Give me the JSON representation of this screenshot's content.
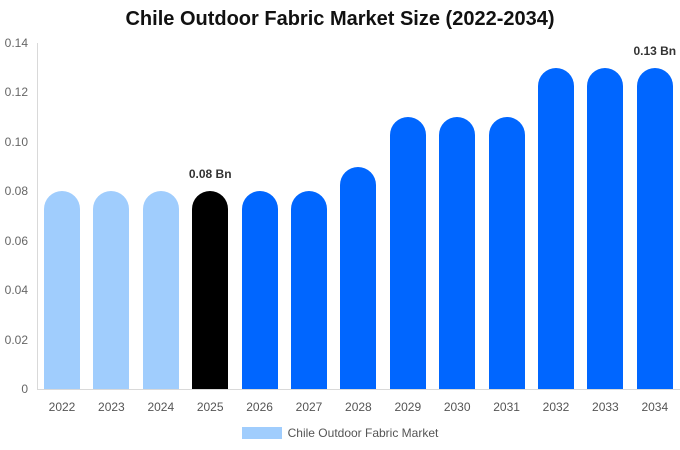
{
  "chart_data": {
    "type": "bar",
    "title": "Chile Outdoor Fabric Market Size (2022-2034)",
    "xlabel": "",
    "ylabel": "",
    "ylim": [
      0,
      0.14
    ],
    "yticks": [
      "0",
      "0.02",
      "0.04",
      "0.06",
      "0.08",
      "0.10",
      "0.12",
      "0.14"
    ],
    "grid": false,
    "legend_position": "bottom",
    "categories": [
      "2022",
      "2023",
      "2024",
      "2025",
      "2026",
      "2027",
      "2028",
      "2029",
      "2030",
      "2031",
      "2032",
      "2033",
      "2034"
    ],
    "series": [
      {
        "name": "Chile Outdoor Fabric Market",
        "values": [
          0.08,
          0.08,
          0.08,
          0.08,
          0.08,
          0.08,
          0.09,
          0.11,
          0.11,
          0.11,
          0.13,
          0.13,
          0.13
        ]
      }
    ],
    "bar_colors": [
      "#a0cdfd",
      "#a0cdfd",
      "#a0cdfd",
      "#000000",
      "#0066ff",
      "#0066ff",
      "#0066ff",
      "#0066ff",
      "#0066ff",
      "#0066ff",
      "#0066ff",
      "#0066ff",
      "#0066ff"
    ],
    "annotations": [
      {
        "category": "2025",
        "text": "0.08 Bn"
      },
      {
        "category": "2034",
        "text": "0.13 Bn"
      }
    ]
  },
  "legend": {
    "label": "Chile Outdoor Fabric Market",
    "color": "#a0cdfd"
  }
}
